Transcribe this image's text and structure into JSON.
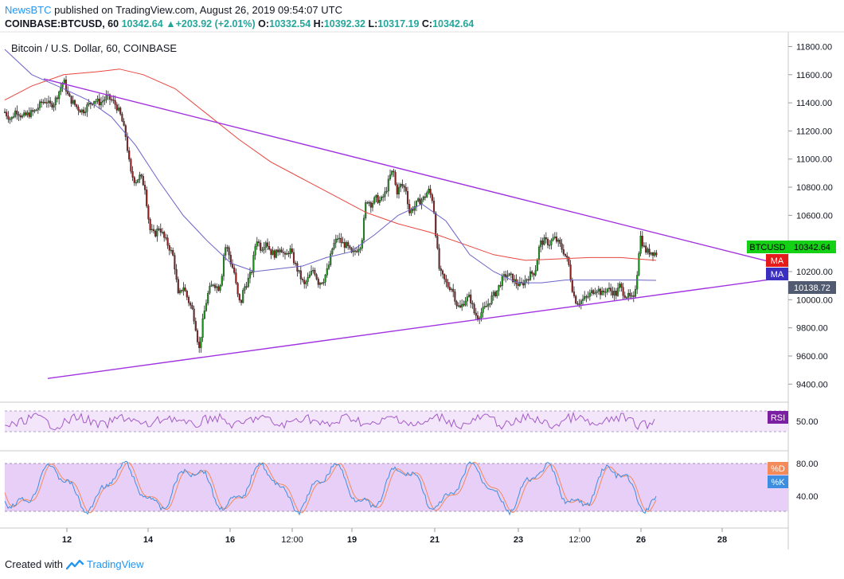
{
  "header": {
    "author": "NewsBTC",
    "published": "published on TradingView.com, August 26, 2019 09:54:07 UTC"
  },
  "quote": {
    "symbol": "COINBASE:BTCUSD, 60",
    "last": "10342.64",
    "change": "+203.92 (+2.01%)",
    "o_label": "O:",
    "o": "10332.54",
    "h_label": "H:",
    "h": "10392.32",
    "l_label": "L:",
    "l": "10317.19",
    "c_label": "C:",
    "c": "10342.64"
  },
  "chart_data": {
    "type": "candlestick",
    "title": "Bitcoin / U.S. Dollar, 60, COINBASE",
    "y_ticks": [
      "11800.00",
      "11600.00",
      "11400.00",
      "11200.00",
      "11000.00",
      "10800.00",
      "10600.00",
      "10400.00",
      "10200.00",
      "10000.00",
      "9800.00",
      "9600.00",
      "9400.00"
    ],
    "ylim": [
      9380,
      11920
    ],
    "x_ticks": [
      "12",
      "14",
      "16",
      "12:00",
      "19",
      "21",
      "23",
      "12:00",
      "26",
      "28"
    ],
    "price_path": [
      [
        0,
        11380
      ],
      [
        8,
        11320
      ],
      [
        14,
        11280
      ],
      [
        20,
        11350
      ],
      [
        28,
        11300
      ],
      [
        36,
        11320
      ],
      [
        44,
        11340
      ],
      [
        52,
        11400
      ],
      [
        58,
        11420
      ],
      [
        62,
        11380
      ],
      [
        68,
        11400
      ],
      [
        74,
        11480
      ],
      [
        80,
        11560
      ],
      [
        86,
        11440
      ],
      [
        92,
        11400
      ],
      [
        98,
        11360
      ],
      [
        104,
        11340
      ],
      [
        110,
        11380
      ],
      [
        118,
        11420
      ],
      [
        126,
        11400
      ],
      [
        134,
        11440
      ],
      [
        140,
        11420
      ],
      [
        146,
        11380
      ],
      [
        152,
        11300
      ],
      [
        158,
        11160
      ],
      [
        164,
        10900
      ],
      [
        170,
        10840
      ],
      [
        176,
        10880
      ],
      [
        182,
        10800
      ],
      [
        188,
        10500
      ],
      [
        194,
        10460
      ],
      [
        200,
        10520
      ],
      [
        206,
        10440
      ],
      [
        212,
        10380
      ],
      [
        218,
        10300
      ],
      [
        224,
        10020
      ],
      [
        230,
        10100
      ],
      [
        236,
        10000
      ],
      [
        242,
        9920
      ],
      [
        246,
        9800
      ],
      [
        250,
        9640
      ],
      [
        254,
        9820
      ],
      [
        258,
        9960
      ],
      [
        262,
        10060
      ],
      [
        268,
        10120
      ],
      [
        274,
        10080
      ],
      [
        278,
        10140
      ],
      [
        282,
        10380
      ],
      [
        286,
        10360
      ],
      [
        290,
        10260
      ],
      [
        294,
        10200
      ],
      [
        298,
        10040
      ],
      [
        302,
        9960
      ],
      [
        306,
        10080
      ],
      [
        310,
        10120
      ],
      [
        316,
        10200
      ],
      [
        322,
        10440
      ],
      [
        328,
        10360
      ],
      [
        334,
        10420
      ],
      [
        340,
        10340
      ],
      [
        346,
        10320
      ],
      [
        352,
        10380
      ],
      [
        358,
        10300
      ],
      [
        364,
        10360
      ],
      [
        370,
        10260
      ],
      [
        376,
        10180
      ],
      [
        382,
        10100
      ],
      [
        388,
        10160
      ],
      [
        394,
        10220
      ],
      [
        400,
        10120
      ],
      [
        406,
        10140
      ],
      [
        412,
        10220
      ],
      [
        418,
        10380
      ],
      [
        424,
        10440
      ],
      [
        430,
        10400
      ],
      [
        436,
        10380
      ],
      [
        442,
        10320
      ],
      [
        448,
        10360
      ],
      [
        454,
        10400
      ],
      [
        460,
        10720
      ],
      [
        466,
        10680
      ],
      [
        472,
        10720
      ],
      [
        478,
        10700
      ],
      [
        484,
        10760
      ],
      [
        490,
        10880
      ],
      [
        494,
        10920
      ],
      [
        498,
        10760
      ],
      [
        504,
        10820
      ],
      [
        510,
        10780
      ],
      [
        514,
        10620
      ],
      [
        520,
        10660
      ],
      [
        526,
        10700
      ],
      [
        532,
        10720
      ],
      [
        538,
        10780
      ],
      [
        544,
        10700
      ],
      [
        548,
        10420
      ],
      [
        552,
        10200
      ],
      [
        556,
        10160
      ],
      [
        562,
        10100
      ],
      [
        568,
        10080
      ],
      [
        574,
        9960
      ],
      [
        578,
        9940
      ],
      [
        584,
        10000
      ],
      [
        590,
        10020
      ],
      [
        596,
        9900
      ],
      [
        600,
        9880
      ],
      [
        606,
        9920
      ],
      [
        612,
        9960
      ],
      [
        618,
        10020
      ],
      [
        624,
        10060
      ],
      [
        630,
        10140
      ],
      [
        636,
        10180
      ],
      [
        642,
        10160
      ],
      [
        648,
        10120
      ],
      [
        654,
        10100
      ],
      [
        660,
        10140
      ],
      [
        666,
        10180
      ],
      [
        672,
        10200
      ],
      [
        678,
        10400
      ],
      [
        684,
        10420
      ],
      [
        690,
        10400
      ],
      [
        696,
        10440
      ],
      [
        702,
        10400
      ],
      [
        708,
        10340
      ],
      [
        714,
        10260
      ],
      [
        718,
        10100
      ],
      [
        722,
        10000
      ],
      [
        726,
        9980
      ],
      [
        732,
        10000
      ],
      [
        738,
        10020
      ],
      [
        744,
        10060
      ],
      [
        750,
        10080
      ],
      [
        756,
        10040
      ],
      [
        762,
        10080
      ],
      [
        768,
        10060
      ],
      [
        774,
        10040
      ],
      [
        778,
        10100
      ],
      [
        784,
        10040
      ],
      [
        790,
        10020
      ],
      [
        796,
        10000
      ],
      [
        800,
        10180
      ],
      [
        804,
        10460
      ],
      [
        808,
        10380
      ],
      [
        812,
        10340
      ],
      [
        818,
        10340
      ],
      [
        824,
        10330
      ]
    ],
    "candle_span": [
      6,
      825
    ],
    "series": [
      {
        "name": "MA",
        "values_path": [
          [
            6,
            11420
          ],
          [
            40,
            11520
          ],
          [
            80,
            11600
          ],
          [
            120,
            11620
          ],
          [
            150,
            11640
          ],
          [
            180,
            11600
          ],
          [
            220,
            11500
          ],
          [
            260,
            11320
          ],
          [
            300,
            11140
          ],
          [
            340,
            10980
          ],
          [
            380,
            10860
          ],
          [
            420,
            10740
          ],
          [
            460,
            10620
          ],
          [
            500,
            10540
          ],
          [
            540,
            10480
          ],
          [
            580,
            10400
          ],
          [
            620,
            10320
          ],
          [
            660,
            10280
          ],
          [
            700,
            10290
          ],
          [
            740,
            10300
          ],
          [
            780,
            10300
          ],
          [
            800,
            10290
          ],
          [
            824,
            10280
          ]
        ]
      },
      {
        "name": "MA",
        "values_path": [
          [
            6,
            11780
          ],
          [
            40,
            11600
          ],
          [
            80,
            11500
          ],
          [
            110,
            11420
          ],
          [
            140,
            11300
          ],
          [
            170,
            11100
          ],
          [
            200,
            10840
          ],
          [
            230,
            10600
          ],
          [
            260,
            10420
          ],
          [
            290,
            10260
          ],
          [
            320,
            10200
          ],
          [
            350,
            10220
          ],
          [
            380,
            10240
          ],
          [
            410,
            10300
          ],
          [
            440,
            10340
          ],
          [
            470,
            10460
          ],
          [
            500,
            10600
          ],
          [
            530,
            10680
          ],
          [
            560,
            10560
          ],
          [
            590,
            10320
          ],
          [
            620,
            10200
          ],
          [
            650,
            10120
          ],
          [
            680,
            10120
          ],
          [
            710,
            10140
          ],
          [
            740,
            10140
          ],
          [
            770,
            10140
          ],
          [
            800,
            10140
          ],
          [
            824,
            10138
          ]
        ]
      }
    ],
    "trendlines": [
      {
        "from": [
          55,
          11570
        ],
        "to": [
          988,
          10240
        ]
      },
      {
        "from": [
          60,
          9440
        ],
        "to": [
          988,
          10160
        ]
      }
    ],
    "price_labels": {
      "btcusd_label": "BTCUSD",
      "btcusd_value": "10342.64",
      "ma1_label": "MA",
      "ma2_label": "MA",
      "ma2_value": "10138.72"
    },
    "rsi": {
      "label": "RSI",
      "tick": "50.00"
    },
    "stoch": {
      "label_d": "%D",
      "label_k": "%K",
      "ticks": [
        "80.00",
        "40.00"
      ]
    },
    "colors": {
      "up": "#26a69a",
      "down": "#ef5350",
      "candle_up_fill": "#1b8f1b",
      "candle_down_fill": "#8b1e1e",
      "ma_red": "#e8463f",
      "ma_blue": "#6b63c9",
      "trend": "#a132e0",
      "btcusd_tag": "#15d115",
      "ma_tag_red": "#e51a1a",
      "ma_tag_blue": "#3a2fbf",
      "rsi_fill": "#f3e6fa",
      "rsi_tag": "#7b1fa2",
      "stoch_fill": "#e8cff8"
    }
  },
  "footer": {
    "created_with": "Created with",
    "brand": "TradingView"
  }
}
